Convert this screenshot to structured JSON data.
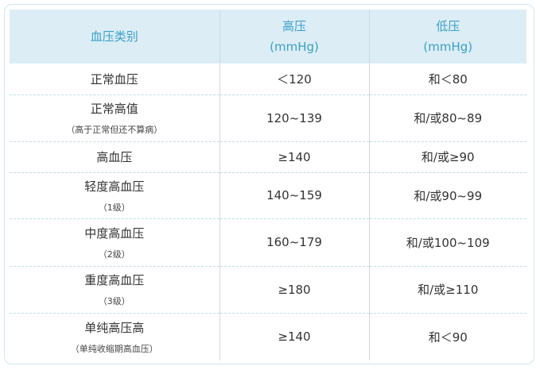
{
  "table": {
    "header": [
      {
        "title": "血压类别"
      },
      {
        "title": "高压",
        "unit": "(mmHg)"
      },
      {
        "title": "低压",
        "unit": "(mmHg)"
      }
    ],
    "rows": [
      {
        "category": "正常血压",
        "systolic": "＜120",
        "diastolic": "和＜80"
      },
      {
        "category": "正常高值",
        "note": "（高于正常但还不算病）",
        "systolic": "120~139",
        "diastolic": "和/或80~89"
      },
      {
        "category": "高血压",
        "systolic": "≥140",
        "diastolic": "和/或≥90"
      },
      {
        "category": "轻度高血压",
        "note": "（1级）",
        "systolic": "140~159",
        "diastolic": "和/或90~99"
      },
      {
        "category": "中度高血压",
        "note": "（2级）",
        "systolic": "160~179",
        "diastolic": "和/或100~109"
      },
      {
        "category": "重度高血压",
        "note": "（3级）",
        "systolic": "≥180",
        "diastolic": "和/或≥110"
      },
      {
        "category": "单纯高压高",
        "note": "（单纯收缩期高血压）",
        "systolic": "≥140",
        "diastolic": "和＜90"
      }
    ]
  }
}
